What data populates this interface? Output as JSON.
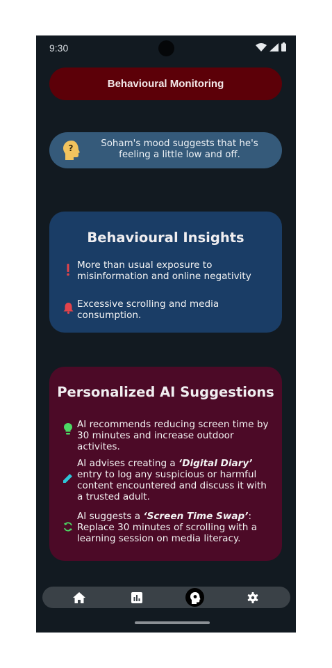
{
  "status_bar": {
    "time": "9:30"
  },
  "header": {
    "title": "Behavioural Monitoring"
  },
  "mood": {
    "text": "Soham's mood suggests that he's feeling a little low and off."
  },
  "insights": {
    "title": "Behavioural Insights",
    "items": [
      {
        "icon": "exclamation-icon",
        "text": "More than usual exposure to misinformation and online negativity"
      },
      {
        "icon": "bell-icon",
        "text": "Excessive scrolling and media consumption."
      }
    ]
  },
  "suggestions": {
    "title": "Personalized AI Suggestions",
    "items": [
      {
        "icon": "lightbulb-icon",
        "pre": "AI recommends reducing screen time by 30 minutes and increase outdoor activites.",
        "em": "",
        "post": ""
      },
      {
        "icon": "pencil-icon",
        "pre": "AI advises creating a ",
        "em": "‘Digital Diary’",
        "post": " entry to log any suspicious or harmful content encountered and discuss it with a trusted adult."
      },
      {
        "icon": "sync-icon",
        "pre": "AI suggests a ",
        "em": "‘Screen Time Swap’",
        "post": ": Replace 30 minutes of scrolling with a learning session on media literacy."
      }
    ]
  },
  "nav": {
    "items": [
      "home-icon",
      "chart-icon",
      "brain-icon",
      "gear-icon"
    ],
    "active": "brain-icon"
  },
  "colors": {
    "background": "#121a21",
    "title_pill": "#5c0008",
    "mood_pill": "#355a7a",
    "insights_card": "#1a3d66",
    "suggestions_card": "#4c0a27",
    "alert_red": "#e2434b",
    "accent_green": "#4cd964",
    "accent_cyan": "#2ec4d6"
  }
}
